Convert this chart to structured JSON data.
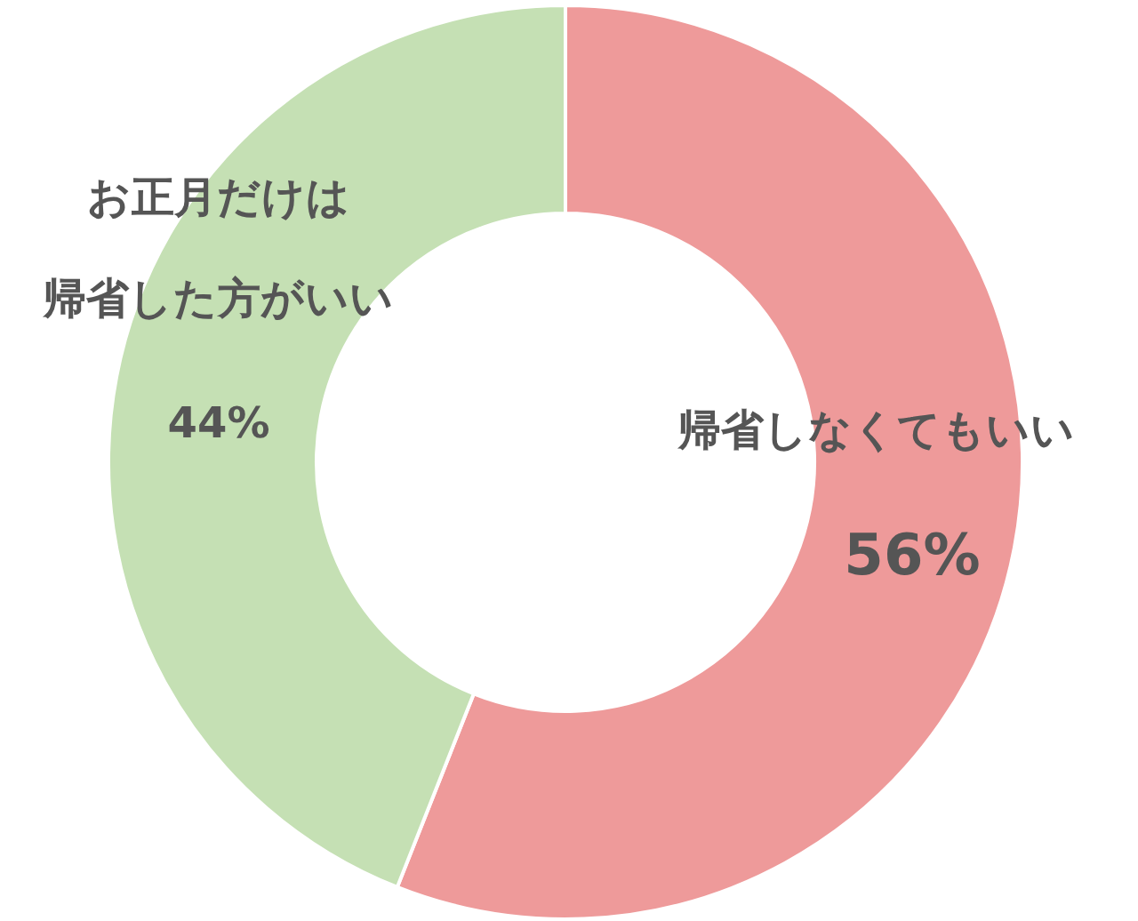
{
  "chart_data": {
    "type": "donut",
    "categories": [
      "帰省しなくてもいい",
      "お正月だけは帰省した方がいい"
    ],
    "values": [
      56,
      44
    ],
    "colors": [
      "#ee9a9a",
      "#c5e0b4"
    ],
    "value_labels": [
      "56%",
      "44%"
    ]
  }
}
